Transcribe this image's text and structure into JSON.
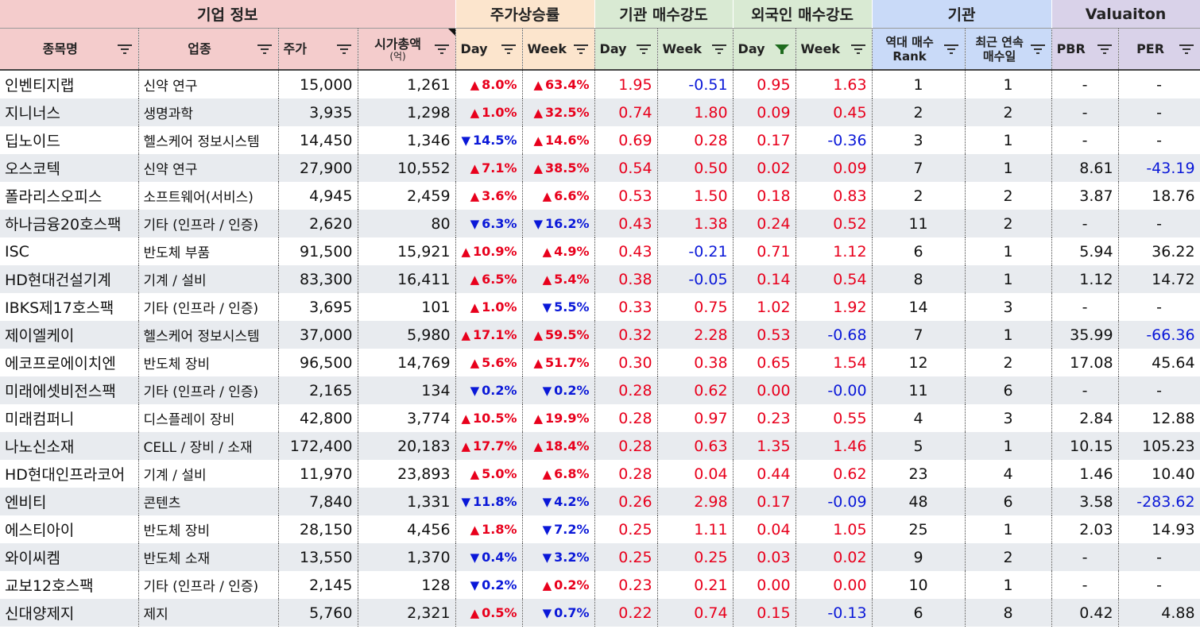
{
  "groups": {
    "company": "기업 정보",
    "price": "주가상승률",
    "inst": "기관 매수강도",
    "foreign": "외국인 매수강도",
    "inst2": "기관",
    "val": "Valuaiton"
  },
  "headers": {
    "name": "종목명",
    "industry": "업종",
    "price": "주가",
    "mcap": "시가총액",
    "mcap_unit": "(억)",
    "price_day": "Day",
    "price_week": "Week",
    "inst_day": "Day",
    "inst_week": "Week",
    "for_day": "Day",
    "for_week": "Week",
    "rank_line1": "역대 매수",
    "rank_line2": "Rank",
    "streak_line1": "최근 연속",
    "streak_line2": "매수일",
    "pbr": "PBR",
    "per": "PER"
  },
  "colors": {
    "up": "#e8001c",
    "down": "#0a18d8",
    "filter_active": "#1e6b1e"
  },
  "filter_icon": "filter-icon",
  "rows": [
    {
      "name": "인벤티지랩",
      "industry": "신약 연구",
      "price": "15,000",
      "mcap": "1,261",
      "dd": "up",
      "dv": "8.0%",
      "wd": "up",
      "wv": "63.4%",
      "id": "1.95",
      "iw": "-0.51",
      "fd": "0.95",
      "fw": "1.63",
      "rank": "1",
      "streak": "1",
      "pbr": "-",
      "per": "-"
    },
    {
      "name": "지니너스",
      "industry": "생명과학",
      "price": "3,935",
      "mcap": "1,298",
      "dd": "up",
      "dv": "1.0%",
      "wd": "up",
      "wv": "32.5%",
      "id": "0.74",
      "iw": "1.80",
      "fd": "0.09",
      "fw": "0.45",
      "rank": "2",
      "streak": "2",
      "pbr": "-",
      "per": "-"
    },
    {
      "name": "딥노이드",
      "industry": "헬스케어 정보시스템",
      "price": "14,450",
      "mcap": "1,346",
      "dd": "down",
      "dv": "14.5%",
      "wd": "up",
      "wv": "14.6%",
      "id": "0.69",
      "iw": "0.28",
      "fd": "0.17",
      "fw": "-0.36",
      "rank": "3",
      "streak": "1",
      "pbr": "-",
      "per": "-"
    },
    {
      "name": "오스코텍",
      "industry": "신약 연구",
      "price": "27,900",
      "mcap": "10,552",
      "dd": "up",
      "dv": "7.1%",
      "wd": "up",
      "wv": "38.5%",
      "id": "0.54",
      "iw": "0.50",
      "fd": "0.02",
      "fw": "0.09",
      "rank": "7",
      "streak": "1",
      "pbr": "8.61",
      "per": "-43.19"
    },
    {
      "name": "폴라리스오피스",
      "industry": "소프트웨어(서비스)",
      "price": "4,945",
      "mcap": "2,459",
      "dd": "up",
      "dv": "3.6%",
      "wd": "up",
      "wv": "6.6%",
      "id": "0.53",
      "iw": "1.50",
      "fd": "0.18",
      "fw": "0.83",
      "rank": "2",
      "streak": "2",
      "pbr": "3.87",
      "per": "18.76"
    },
    {
      "name": "하나금융20호스팩",
      "industry": "기타 (인프라 / 인증)",
      "price": "2,620",
      "mcap": "80",
      "dd": "down",
      "dv": "6.3%",
      "wd": "down",
      "wv": "16.2%",
      "id": "0.43",
      "iw": "1.38",
      "fd": "0.24",
      "fw": "0.52",
      "rank": "11",
      "streak": "2",
      "pbr": "-",
      "per": "-"
    },
    {
      "name": "ISC",
      "industry": "반도체 부품",
      "price": "91,500",
      "mcap": "15,921",
      "dd": "up",
      "dv": "10.9%",
      "wd": "up",
      "wv": "4.9%",
      "id": "0.43",
      "iw": "-0.21",
      "fd": "0.71",
      "fw": "1.12",
      "rank": "6",
      "streak": "1",
      "pbr": "5.94",
      "per": "36.22"
    },
    {
      "name": "HD현대건설기계",
      "industry": "기계 / 설비",
      "price": "83,300",
      "mcap": "16,411",
      "dd": "up",
      "dv": "6.5%",
      "wd": "up",
      "wv": "5.4%",
      "id": "0.38",
      "iw": "-0.05",
      "fd": "0.14",
      "fw": "0.54",
      "rank": "8",
      "streak": "1",
      "pbr": "1.12",
      "per": "14.72"
    },
    {
      "name": "IBKS제17호스팩",
      "industry": "기타 (인프라 / 인증)",
      "price": "3,695",
      "mcap": "101",
      "dd": "up",
      "dv": "1.0%",
      "wd": "down",
      "wv": "5.5%",
      "id": "0.33",
      "iw": "0.75",
      "fd": "1.02",
      "fw": "1.92",
      "rank": "14",
      "streak": "3",
      "pbr": "-",
      "per": "-"
    },
    {
      "name": "제이엘케이",
      "industry": "헬스케어 정보시스템",
      "price": "37,000",
      "mcap": "5,980",
      "dd": "up",
      "dv": "17.1%",
      "wd": "up",
      "wv": "59.5%",
      "id": "0.32",
      "iw": "2.28",
      "fd": "0.53",
      "fw": "-0.68",
      "rank": "7",
      "streak": "1",
      "pbr": "35.99",
      "per": "-66.36"
    },
    {
      "name": "에코프로에이치엔",
      "industry": "반도체 장비",
      "price": "96,500",
      "mcap": "14,769",
      "dd": "up",
      "dv": "5.6%",
      "wd": "up",
      "wv": "51.7%",
      "id": "0.30",
      "iw": "0.38",
      "fd": "0.65",
      "fw": "1.54",
      "rank": "12",
      "streak": "2",
      "pbr": "17.08",
      "per": "45.64"
    },
    {
      "name": "미래에셋비전스팩",
      "industry": "기타 (인프라 / 인증)",
      "price": "2,165",
      "mcap": "134",
      "dd": "down",
      "dv": "0.2%",
      "wd": "down",
      "wv": "0.2%",
      "id": "0.28",
      "iw": "0.62",
      "fd": "0.00",
      "fw": "-0.00",
      "rank": "11",
      "streak": "6",
      "pbr": "-",
      "per": "-"
    },
    {
      "name": "미래컴퍼니",
      "industry": "디스플레이 장비",
      "price": "42,800",
      "mcap": "3,774",
      "dd": "up",
      "dv": "10.5%",
      "wd": "up",
      "wv": "19.9%",
      "id": "0.28",
      "iw": "0.97",
      "fd": "0.23",
      "fw": "0.55",
      "rank": "4",
      "streak": "3",
      "pbr": "2.84",
      "per": "12.88"
    },
    {
      "name": "나노신소재",
      "industry": "CELL / 장비 / 소재",
      "price": "172,400",
      "mcap": "20,183",
      "dd": "up",
      "dv": "17.7%",
      "wd": "up",
      "wv": "18.4%",
      "id": "0.28",
      "iw": "0.63",
      "fd": "1.35",
      "fw": "1.46",
      "rank": "5",
      "streak": "1",
      "pbr": "10.15",
      "per": "105.23"
    },
    {
      "name": "HD현대인프라코어",
      "industry": "기계 / 설비",
      "price": "11,970",
      "mcap": "23,893",
      "dd": "up",
      "dv": "5.0%",
      "wd": "up",
      "wv": "6.8%",
      "id": "0.28",
      "iw": "0.04",
      "fd": "0.44",
      "fw": "0.62",
      "rank": "23",
      "streak": "4",
      "pbr": "1.46",
      "per": "10.40"
    },
    {
      "name": "엔비티",
      "industry": "콘텐츠",
      "price": "7,840",
      "mcap": "1,331",
      "dd": "down",
      "dv": "11.8%",
      "wd": "down",
      "wv": "4.2%",
      "id": "0.26",
      "iw": "2.98",
      "fd": "0.17",
      "fw": "-0.09",
      "rank": "48",
      "streak": "6",
      "pbr": "3.58",
      "per": "-283.62"
    },
    {
      "name": "에스티아이",
      "industry": "반도체 장비",
      "price": "28,150",
      "mcap": "4,456",
      "dd": "up",
      "dv": "1.8%",
      "wd": "down",
      "wv": "7.2%",
      "id": "0.25",
      "iw": "1.11",
      "fd": "0.04",
      "fw": "1.05",
      "rank": "25",
      "streak": "1",
      "pbr": "2.03",
      "per": "14.93"
    },
    {
      "name": "와이씨켐",
      "industry": "반도체 소재",
      "price": "13,550",
      "mcap": "1,370",
      "dd": "down",
      "dv": "0.4%",
      "wd": "down",
      "wv": "3.2%",
      "id": "0.25",
      "iw": "0.25",
      "fd": "0.03",
      "fw": "0.02",
      "rank": "9",
      "streak": "2",
      "pbr": "-",
      "per": "-"
    },
    {
      "name": "교보12호스팩",
      "industry": "기타 (인프라 / 인증)",
      "price": "2,145",
      "mcap": "128",
      "dd": "down",
      "dv": "0.2%",
      "wd": "up",
      "wv": "0.2%",
      "id": "0.23",
      "iw": "0.21",
      "fd": "0.00",
      "fw": "0.00",
      "rank": "10",
      "streak": "1",
      "pbr": "-",
      "per": "-"
    },
    {
      "name": "신대양제지",
      "industry": "제지",
      "price": "5,760",
      "mcap": "2,321",
      "dd": "up",
      "dv": "0.5%",
      "wd": "down",
      "wv": "0.7%",
      "id": "0.22",
      "iw": "0.74",
      "fd": "0.15",
      "fw": "-0.13",
      "rank": "6",
      "streak": "8",
      "pbr": "0.42",
      "per": "4.88"
    }
  ]
}
